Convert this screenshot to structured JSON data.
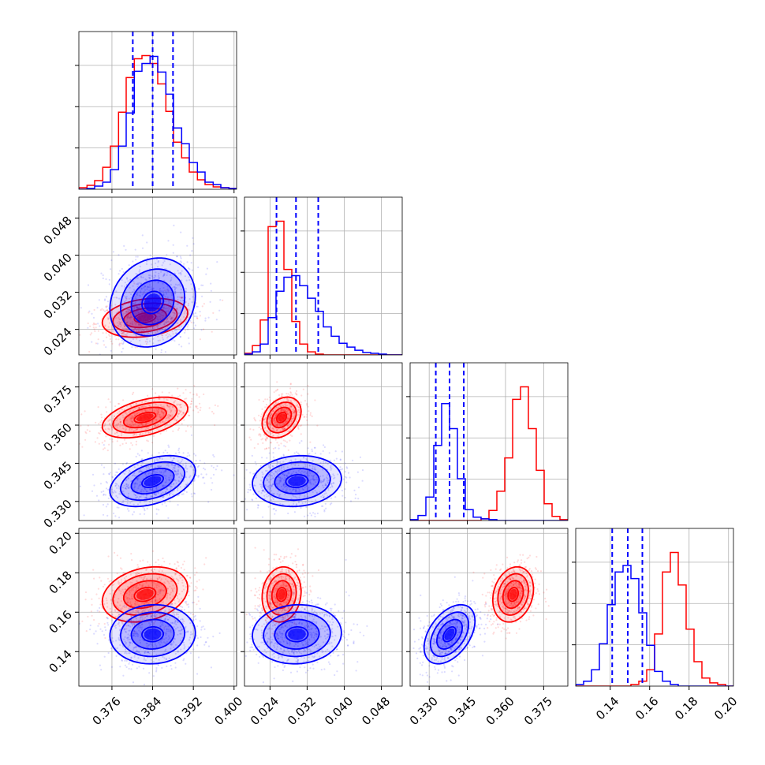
{
  "colors": {
    "series_a": "#ff0000",
    "series_b": "#0000ff",
    "grid": "#b0b0b0",
    "frame": "#000000"
  },
  "chart_data": {
    "type": "corner",
    "grid": true,
    "params": [
      {
        "range": [
          0.3695,
          0.4005
        ],
        "ticks": [
          "0.376",
          "0.384",
          "0.392",
          "0.400"
        ],
        "quantiles_b": [
          0.3801,
          0.384,
          0.388
        ]
      },
      {
        "range": [
          0.0185,
          0.0525
        ],
        "ticks": [
          "0.024",
          "0.032",
          "0.040",
          "0.048"
        ],
        "quantiles_b": [
          0.0254,
          0.0296,
          0.0344
        ]
      },
      {
        "range": [
          0.3225,
          0.3845
        ],
        "ticks": [
          "0.330",
          "0.345",
          "0.360",
          "0.375"
        ],
        "quantiles_b": [
          0.3326,
          0.338,
          0.3436
        ]
      },
      {
        "range": [
          0.1225,
          0.2025
        ],
        "ticks": [
          "0.14",
          "0.16",
          "0.18",
          "0.20"
        ],
        "quantiles_b": [
          0.141,
          0.1489,
          0.1563
        ]
      }
    ],
    "series": [
      {
        "color": "#ff0000",
        "mean": [
          0.3825,
          0.0265,
          0.363,
          0.169
        ],
        "sd": [
          0.0042,
          0.0021,
          0.004,
          0.007
        ],
        "corr": [
          [
            0,
            0.25,
            0.45,
            0.25
          ],
          [
            0.25,
            0,
            0.3,
            0.1
          ],
          [
            0.45,
            0.3,
            0,
            0.2
          ],
          [
            0.25,
            0.1,
            0.2,
            0
          ]
        ]
      },
      {
        "color": "#0000ff",
        "mean": [
          0.384,
          0.0298,
          0.338,
          0.1488
        ],
        "sd": [
          0.0042,
          0.0048,
          0.005,
          0.0075
        ],
        "corr": [
          [
            0,
            0.15,
            0.4,
            0.05
          ],
          [
            0.15,
            0,
            0.1,
            0.05
          ],
          [
            0.4,
            0.1,
            0,
            0.45
          ],
          [
            0.05,
            0.05,
            0.45,
            0
          ]
        ]
      }
    ],
    "histograms": [
      {
        "series": [
          {
            "color": "#ff0000",
            "bins": [
              0.3695,
              0.3711,
              0.3726,
              0.3742,
              0.3757,
              0.3773,
              0.3788,
              0.3804,
              0.3819,
              0.3835,
              0.385,
              0.3866,
              0.3881,
              0.3897,
              0.3912,
              0.3928,
              0.3943,
              0.3959,
              0.3974,
              0.399,
              0.4005
            ],
            "counts": [
              2,
              5,
              11,
              28,
              55,
              98,
              142,
              166,
              170,
              160,
              134,
              99,
              60,
              40,
              22,
              12,
              6,
              3,
              2,
              1
            ]
          },
          {
            "color": "#0000ff",
            "bins": [
              0.3695,
              0.3711,
              0.3726,
              0.3742,
              0.3757,
              0.3773,
              0.3788,
              0.3804,
              0.3819,
              0.3835,
              0.385,
              0.3866,
              0.3881,
              0.3897,
              0.3912,
              0.3928,
              0.3943,
              0.3959,
              0.3974,
              0.399,
              0.4005
            ],
            "counts": [
              0,
              1,
              4,
              9,
              25,
              55,
              97,
              150,
              160,
              169,
              149,
              121,
              78,
              58,
              34,
              22,
              9,
              6,
              2,
              1
            ]
          }
        ]
      },
      {
        "series": [
          {
            "color": "#ff0000",
            "bins": [
              0.0185,
              0.0202,
              0.0219,
              0.0236,
              0.0253,
              0.027,
              0.0287,
              0.0304,
              0.0321,
              0.0338,
              0.0355,
              0.0372,
              0.0389,
              0.0406,
              0.0423,
              0.044,
              0.0457,
              0.0474,
              0.0491,
              0.0508,
              0.0525
            ],
            "counts": [
              2,
              12,
              45,
              165,
              172,
              110,
              43,
              14,
              4,
              1,
              0,
              0,
              0,
              0,
              0,
              0,
              0,
              0,
              0,
              0
            ]
          },
          {
            "color": "#0000ff",
            "bins": [
              0.0185,
              0.0202,
              0.0219,
              0.0236,
              0.0253,
              0.027,
              0.0287,
              0.0304,
              0.0321,
              0.0338,
              0.0355,
              0.0372,
              0.0389,
              0.0406,
              0.0423,
              0.044,
              0.0457,
              0.0474,
              0.0491,
              0.0508,
              0.0525
            ],
            "counts": [
              1,
              4,
              14,
              48,
              82,
              100,
              102,
              89,
              73,
              56,
              36,
              24,
              15,
              10,
              6,
              3,
              2,
              1,
              0,
              0
            ]
          }
        ]
      },
      {
        "series": [
          {
            "color": "#ff0000",
            "bins": [
              0.3225,
              0.3256,
              0.3287,
              0.3318,
              0.3349,
              0.338,
              0.3411,
              0.3442,
              0.3473,
              0.3504,
              0.3535,
              0.3566,
              0.3597,
              0.3628,
              0.3659,
              0.369,
              0.3721,
              0.3752,
              0.3783,
              0.3814,
              0.3845
            ],
            "counts": [
              0,
              0,
              0,
              0,
              0,
              0,
              0,
              0,
              0,
              2,
              12,
              35,
              75,
              145,
              160,
              110,
              60,
              20,
              5,
              1
            ]
          },
          {
            "color": "#0000ff",
            "bins": [
              0.3225,
              0.3256,
              0.3287,
              0.3318,
              0.3349,
              0.338,
              0.3411,
              0.3442,
              0.3473,
              0.3504,
              0.3535,
              0.3566,
              0.3597,
              0.3628,
              0.3659,
              0.369,
              0.3721,
              0.3752,
              0.3783,
              0.3814,
              0.3845
            ],
            "counts": [
              1,
              6,
              28,
              90,
              140,
              110,
              50,
              13,
              4,
              2,
              1,
              0,
              0,
              0,
              0,
              0,
              0,
              0,
              0,
              0
            ]
          }
        ]
      },
      {
        "series": [
          {
            "color": "#ff0000",
            "bins": [
              0.1225,
              0.1265,
              0.1305,
              0.1345,
              0.1385,
              0.1425,
              0.1465,
              0.1505,
              0.1545,
              0.1585,
              0.1625,
              0.1665,
              0.1705,
              0.1745,
              0.1785,
              0.1825,
              0.1865,
              0.1905,
              0.1945,
              0.1985,
              0.2025
            ],
            "counts": [
              0,
              0,
              0,
              0,
              0,
              0,
              0,
              1,
              3,
              10,
              32,
              70,
              82,
              62,
              35,
              15,
              5,
              2,
              1,
              0
            ]
          },
          {
            "color": "#0000ff",
            "bins": [
              0.1225,
              0.1265,
              0.1305,
              0.1345,
              0.1385,
              0.1425,
              0.1465,
              0.1505,
              0.1545,
              0.1585,
              0.1625,
              0.1665,
              0.1705,
              0.1745,
              0.1785,
              0.1825,
              0.1865,
              0.1905,
              0.1945,
              0.1985,
              0.2025
            ],
            "counts": [
              1,
              3,
              10,
              26,
              50,
              70,
              74,
              66,
              45,
              25,
              9,
              3,
              1,
              0,
              0,
              0,
              0,
              0,
              0,
              0
            ]
          }
        ]
      }
    ]
  }
}
